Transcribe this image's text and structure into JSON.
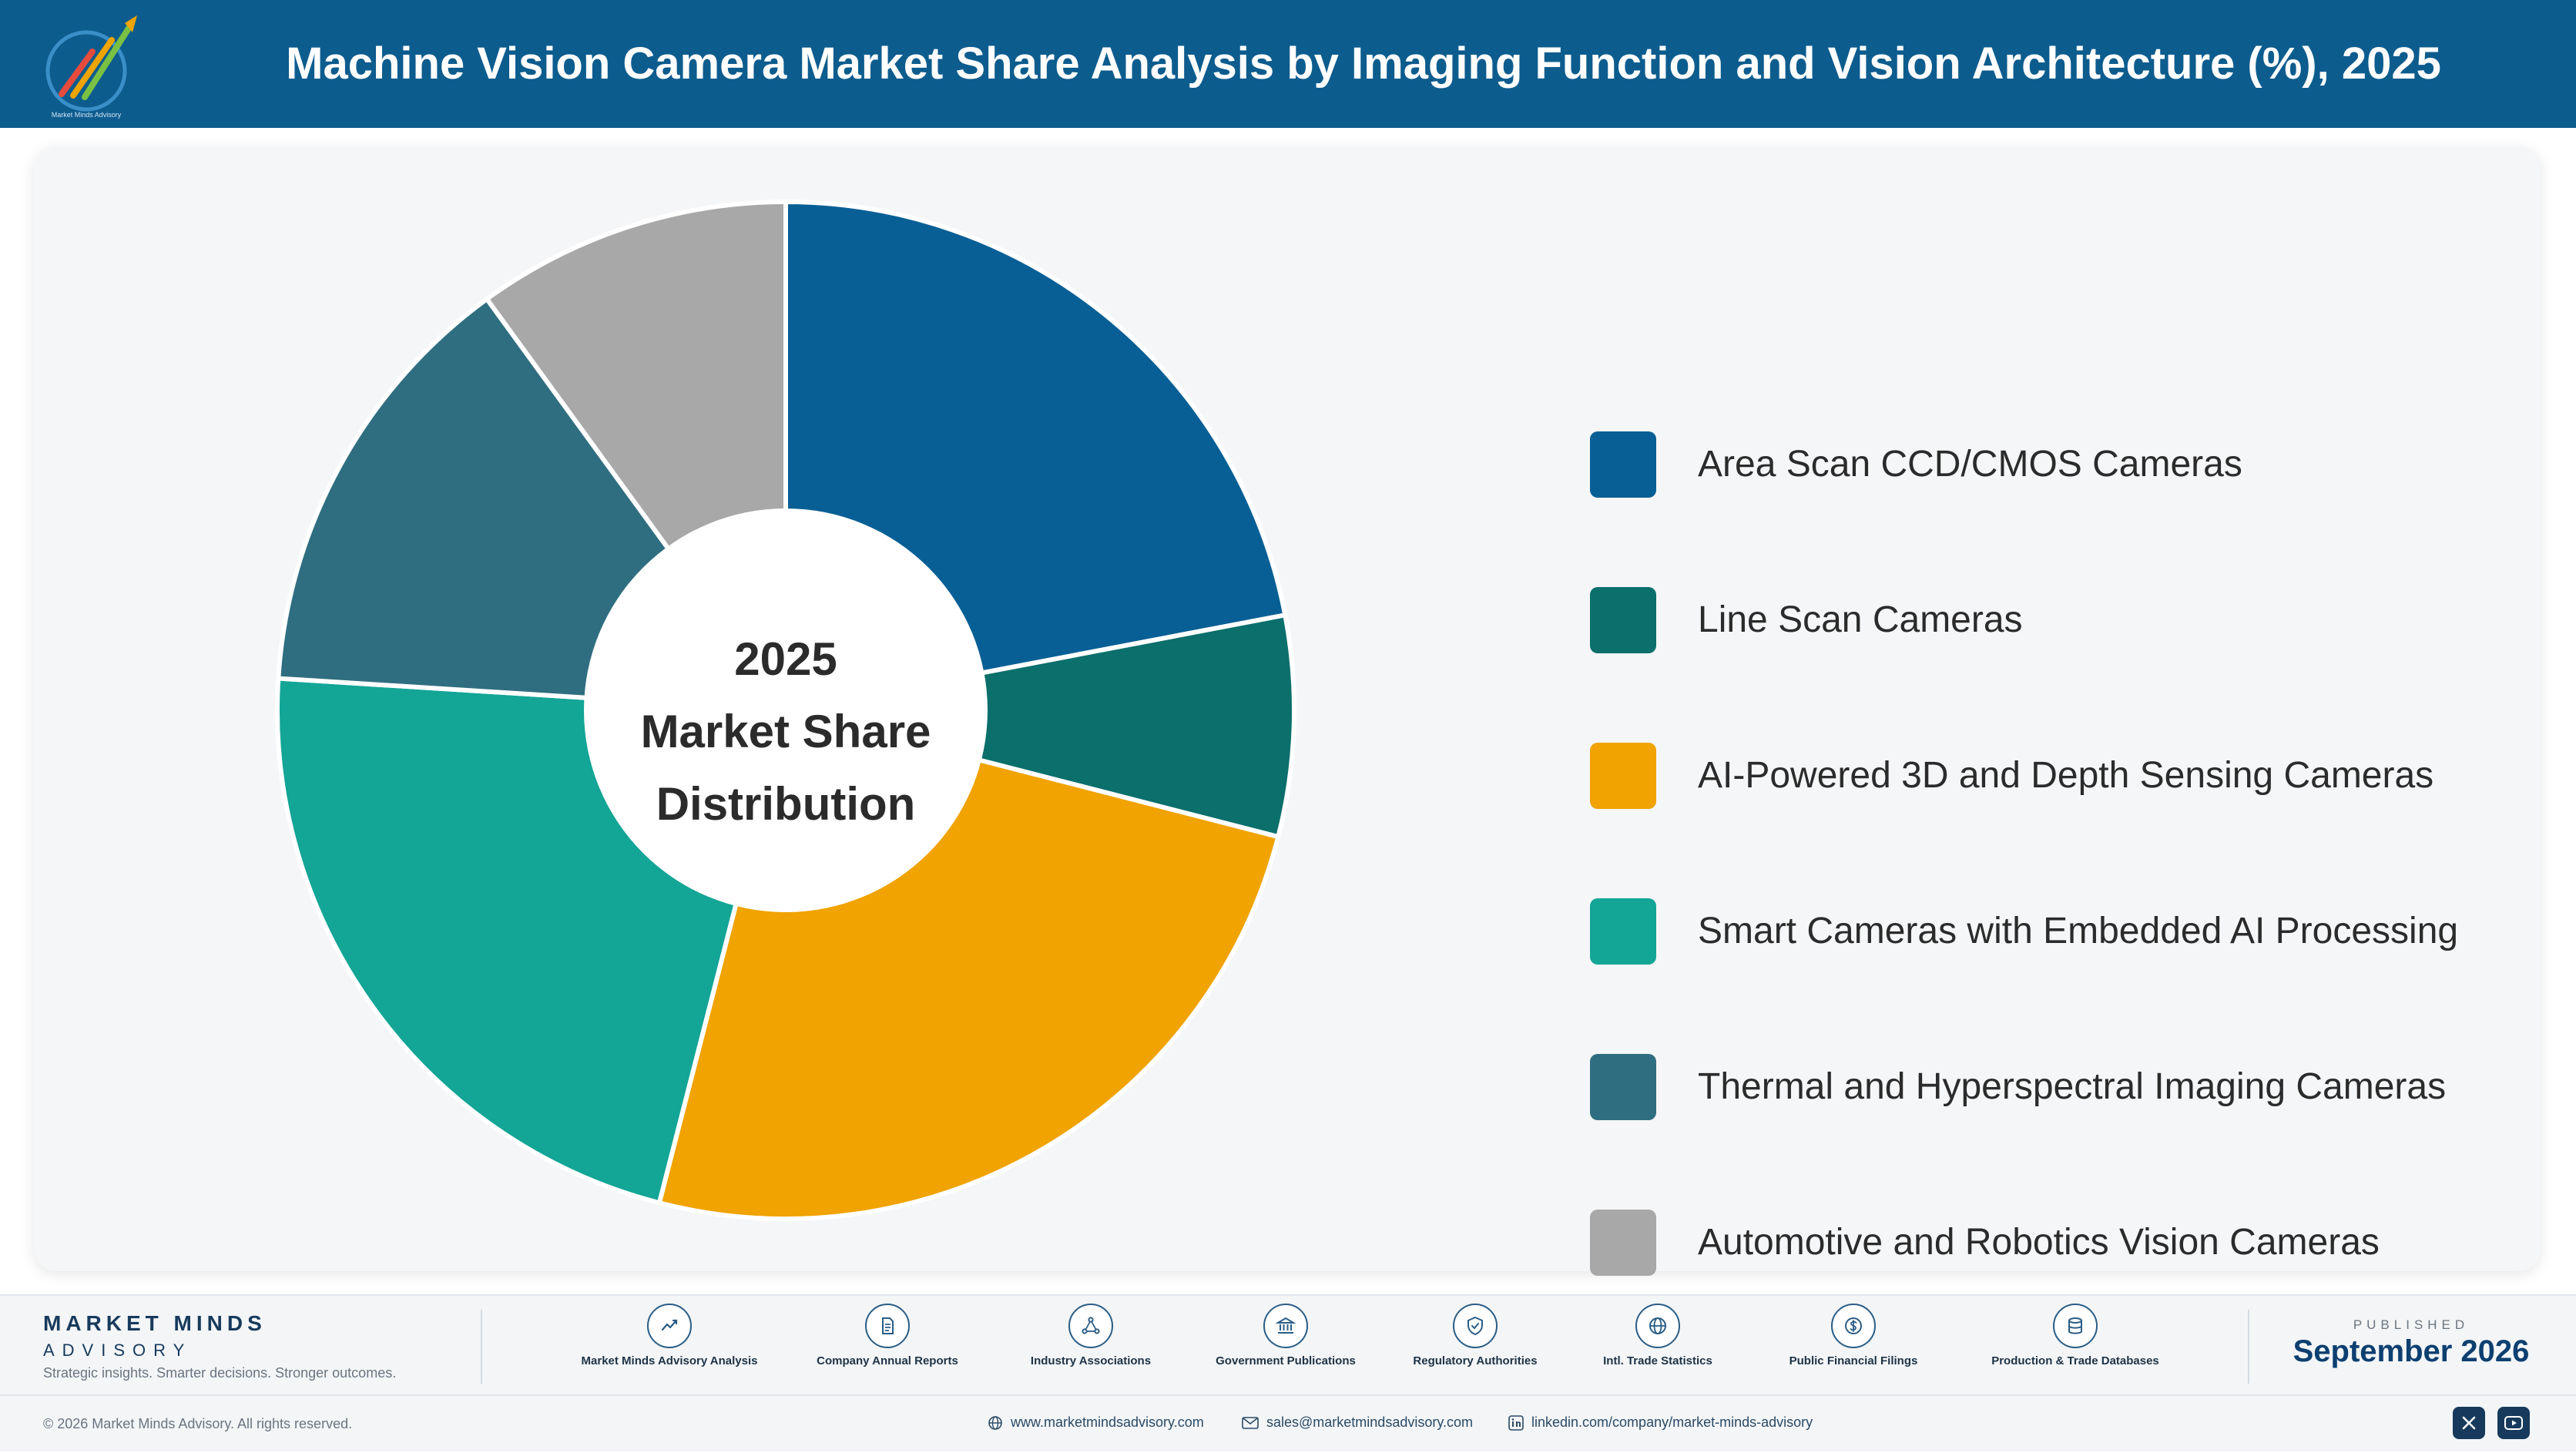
{
  "header": {
    "title": "Machine Vision Camera Market Share Analysis by Imaging Function and Vision Architecture (%), 2025",
    "logo_icon": "market-minds-logo-icon",
    "logo_text": "Market Minds Advisory"
  },
  "chart_data": {
    "type": "pie",
    "variant": "donut",
    "center_text": [
      "2025",
      "Market Share",
      "Distribution"
    ],
    "categories": [
      "Area Scan CCD/CMOS Cameras",
      "Line Scan Cameras",
      "AI-Powered 3D and Depth Sensing Cameras",
      "Smart Cameras with Embedded AI Processing",
      "Thermal and Hyperspectral Imaging Cameras",
      "Automotive and Robotics Vision Cameras"
    ],
    "values": [
      22,
      7,
      25,
      22,
      14,
      10
    ],
    "colors": [
      "#085f95",
      "#0b6f6b",
      "#f0a301",
      "#13a596",
      "#2f6e80",
      "#a8a8a8"
    ],
    "legend_position": "right",
    "start_angle": "top, clockwise"
  },
  "footer": {
    "brand_name": "MARKET MINDS",
    "brand_sub": "ADVISORY",
    "tagline": "Strategic insights. Smarter decisions. Stronger outcomes.",
    "sources": [
      {
        "label": "Market Minds Advisory Analysis",
        "icon": "trend-chart-icon"
      },
      {
        "label": "Company Annual Reports",
        "icon": "document-icon"
      },
      {
        "label": "Industry Associations",
        "icon": "network-icon"
      },
      {
        "label": "Government Publications",
        "icon": "government-building-icon"
      },
      {
        "label": "Regulatory Authorities",
        "icon": "shield-icon"
      },
      {
        "label": "Intl. Trade Statistics",
        "icon": "globe-icon"
      },
      {
        "label": "Public Financial Filings",
        "icon": "dollar-icon"
      },
      {
        "label": "Production & Trade Databases",
        "icon": "database-icon"
      }
    ],
    "published_label": "PUBLISHED",
    "published_date": "September 2026",
    "copyright": "© 2026 Market Minds Advisory. All rights reserved.",
    "website": "www.marketmindsadvisory.com",
    "email": "sales@marketmindsadvisory.com",
    "linkedin": "linkedin.com/company/market-minds-advisory",
    "social": [
      {
        "name": "x",
        "icon": "x-icon"
      },
      {
        "name": "youtube",
        "icon": "youtube-icon"
      }
    ]
  }
}
